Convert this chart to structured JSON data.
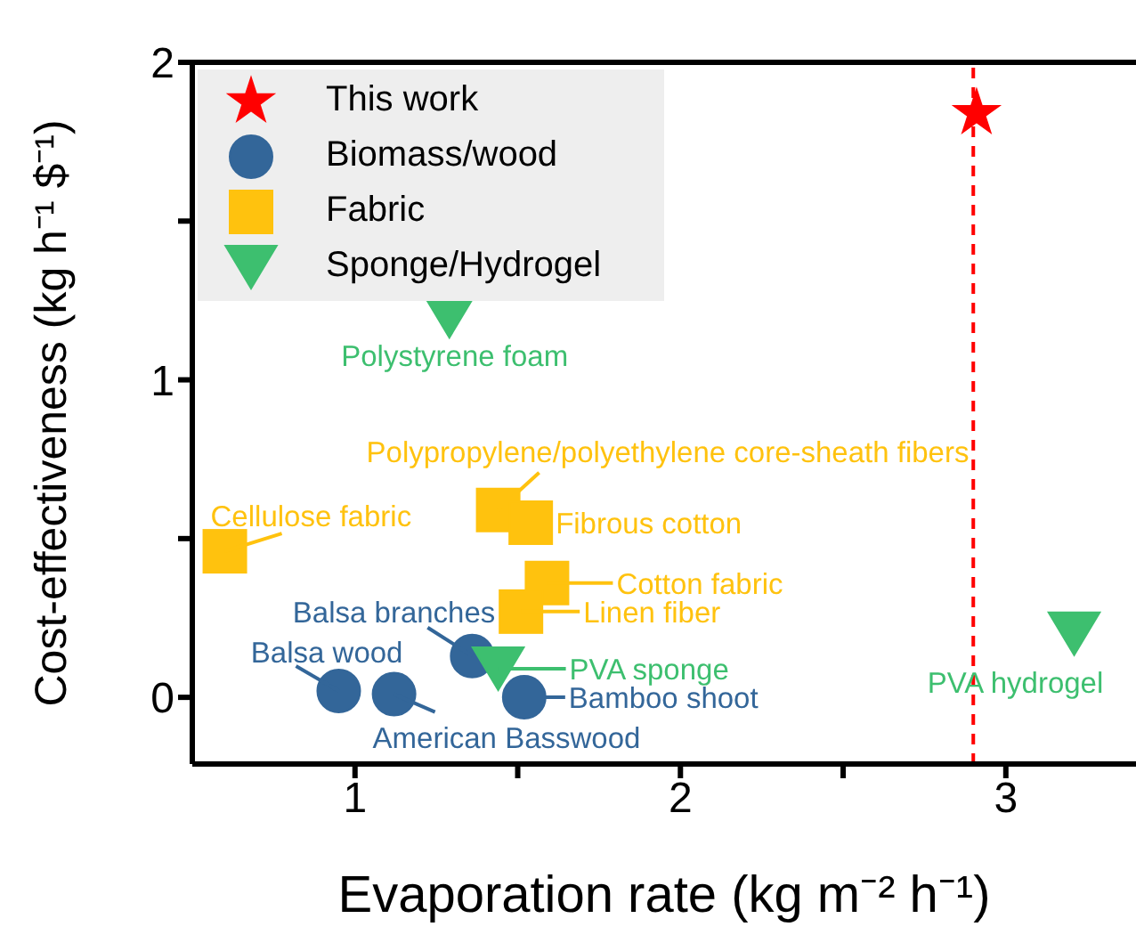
{
  "chart_data": {
    "type": "scatter",
    "xlabel": "Evaporation rate (kg m⁻² h⁻¹)",
    "ylabel": "Cost-effectiveness (kg h⁻¹ $⁻¹)",
    "xlim": [
      0.5,
      3.4
    ],
    "ylim": [
      -0.21,
      2
    ],
    "xticks": [
      1,
      {
        "value": 1.5,
        "label": null
      },
      2,
      {
        "value": 2.5,
        "label": null
      },
      3
    ],
    "yticks": [
      0,
      {
        "value": 0.5,
        "label": null
      },
      1,
      {
        "value": 1.5,
        "label": null
      },
      2
    ],
    "legend": "top left",
    "grid": false,
    "series": [
      {
        "name": "This work",
        "color": "#ff0000",
        "marker": "star",
        "x": [
          2.91
        ],
        "values": [
          1.84
        ]
      },
      {
        "name": "Biomass/wood",
        "color": "#336699",
        "marker": "circle",
        "x": [
          0.95,
          1.12,
          1.36,
          1.52
        ],
        "values": [
          0.02,
          0.01,
          0.13,
          0.0
        ]
      },
      {
        "name": "Fabric",
        "color": "#ffc20e",
        "marker": "square",
        "x": [
          0.6,
          1.44,
          1.54,
          1.59,
          1.51
        ],
        "values": [
          0.46,
          0.59,
          0.55,
          0.36,
          0.27
        ]
      },
      {
        "name": "Sponge/Hydrogel",
        "color": "#3dbf6f",
        "marker": "triangle",
        "x": [
          1.29,
          1.44,
          3.21
        ],
        "values": [
          1.2,
          0.09,
          0.2
        ]
      }
    ],
    "ref_lines": [
      {
        "axis": "x",
        "value": 2.9,
        "color": "#ff0000",
        "line_style": "dashed"
      }
    ],
    "annotations": [
      {
        "text": "Polystyrene foam",
        "x": 1.29,
        "y": 1.2
      },
      {
        "text": "Cellulose fabric",
        "x": 0.6,
        "y": 0.46
      },
      {
        "text": "Polypropylene/polyethylene core-sheath fibers",
        "x": 1.44,
        "y": 0.59
      },
      {
        "text": "Fibrous cotton",
        "x": 1.54,
        "y": 0.55
      },
      {
        "text": "Cotton fabric",
        "x": 1.59,
        "y": 0.36
      },
      {
        "text": "Linen fiber",
        "x": 1.51,
        "y": 0.27
      },
      {
        "text": "Balsa branches",
        "x": 1.36,
        "y": 0.13
      },
      {
        "text": "Balsa wood",
        "x": 0.95,
        "y": 0.02
      },
      {
        "text": "PVA sponge",
        "x": 1.44,
        "y": 0.09
      },
      {
        "text": "Bamboo shoot",
        "x": 1.52,
        "y": 0.0
      },
      {
        "text": "American Basswood",
        "x": 1.12,
        "y": 0.01
      },
      {
        "text": "PVA hydrogel",
        "x": 3.21,
        "y": 0.2
      }
    ]
  }
}
